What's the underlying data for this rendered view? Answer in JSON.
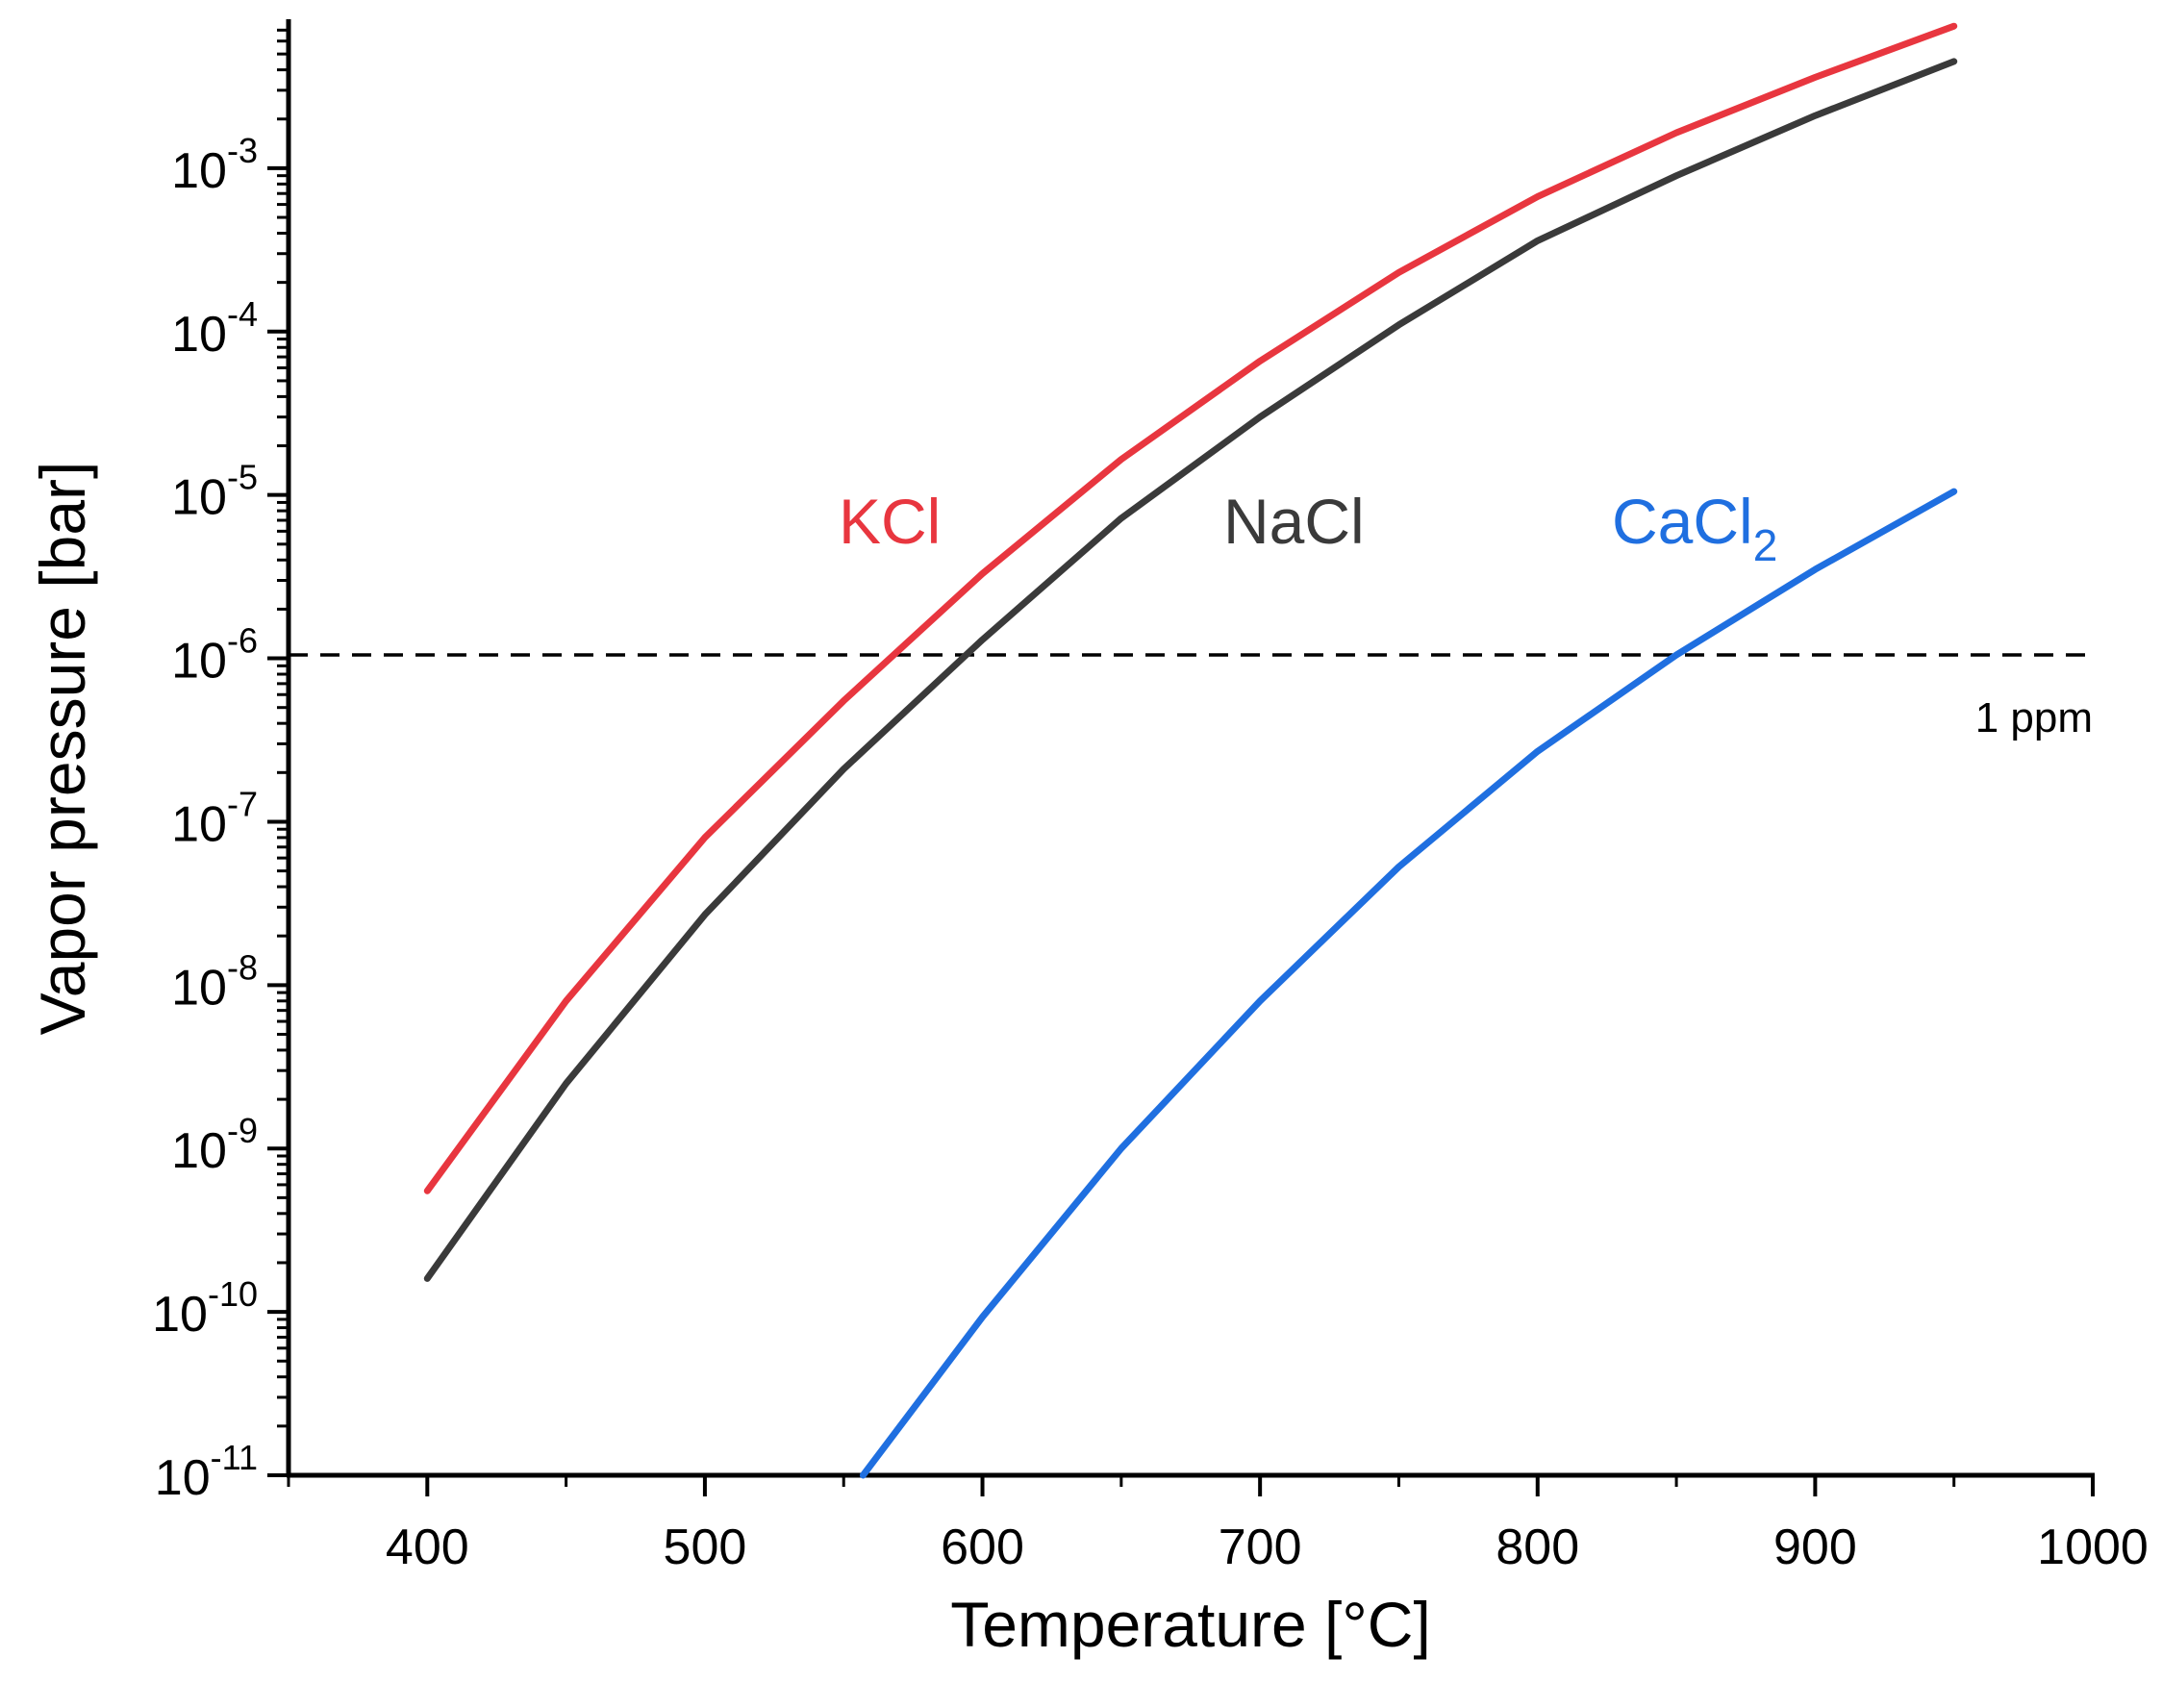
{
  "chart_data": {
    "type": "line",
    "title": "",
    "xlabel": "Temperature [°C]",
    "ylabel": "Vapor pressure [bar]",
    "xlim": [
      350,
      1000
    ],
    "ylim_log10": [
      -11,
      -2.1
    ],
    "yscale": "log",
    "x_ticks": [
      400,
      500,
      600,
      700,
      800,
      900,
      1000
    ],
    "x_tick_labels": [
      "400",
      "500",
      "600",
      "700",
      "800",
      "900",
      "1000"
    ],
    "y_tick_labels": [
      {
        "exp": -11,
        "base": "10",
        "sup": "-11"
      },
      {
        "exp": -10,
        "base": "10",
        "sup": "-10"
      },
      {
        "exp": -9,
        "base": "10",
        "sup": "-9"
      },
      {
        "exp": -8,
        "base": "10",
        "sup": "-8"
      },
      {
        "exp": -7,
        "base": "10",
        "sup": "-7"
      },
      {
        "exp": -6,
        "base": "10",
        "sup": "-6"
      },
      {
        "exp": -5,
        "base": "10",
        "sup": "-5"
      },
      {
        "exp": -4,
        "base": "10",
        "sup": "-4"
      },
      {
        "exp": -3,
        "base": "10",
        "sup": "-3"
      }
    ],
    "series": [
      {
        "name": "KCl",
        "label_main": "KCl",
        "label_sub": "",
        "color": "#e8363f",
        "x": [
          400,
          450,
          500,
          550,
          600,
          650,
          700,
          750,
          800,
          850,
          900,
          950
        ],
        "y": [
          5.5e-10,
          8e-09,
          8e-08,
          5.5e-07,
          3.3e-06,
          1.65e-05,
          6.6e-05,
          0.00023,
          0.00067,
          0.00165,
          0.0036,
          0.0074
        ]
      },
      {
        "name": "NaCl",
        "label_main": "NaCl",
        "label_sub": "",
        "color": "#3a3a3a",
        "x": [
          400,
          450,
          500,
          550,
          600,
          650,
          700,
          750,
          800,
          850,
          900,
          950
        ],
        "y": [
          1.6e-10,
          2.5e-09,
          2.7e-08,
          2.1e-07,
          1.3e-06,
          7.2e-06,
          3e-05,
          0.00011,
          0.00036,
          0.0009,
          0.0021,
          0.0045
        ]
      },
      {
        "name": "CaCl2",
        "label_main": "CaCl",
        "label_sub": "2",
        "color": "#1f6fe0",
        "x": [
          557,
          600,
          650,
          700,
          750,
          800,
          850,
          900,
          950
        ],
        "y": [
          1e-11,
          9.3e-11,
          1e-09,
          8e-09,
          5.3e-08,
          2.7e-07,
          1.05e-06,
          3.5e-06,
          1.05e-05
        ]
      }
    ],
    "reference_line": {
      "y": 1.05e-06,
      "label": "1 ppm",
      "style": "dashed",
      "color": "#000000"
    }
  }
}
